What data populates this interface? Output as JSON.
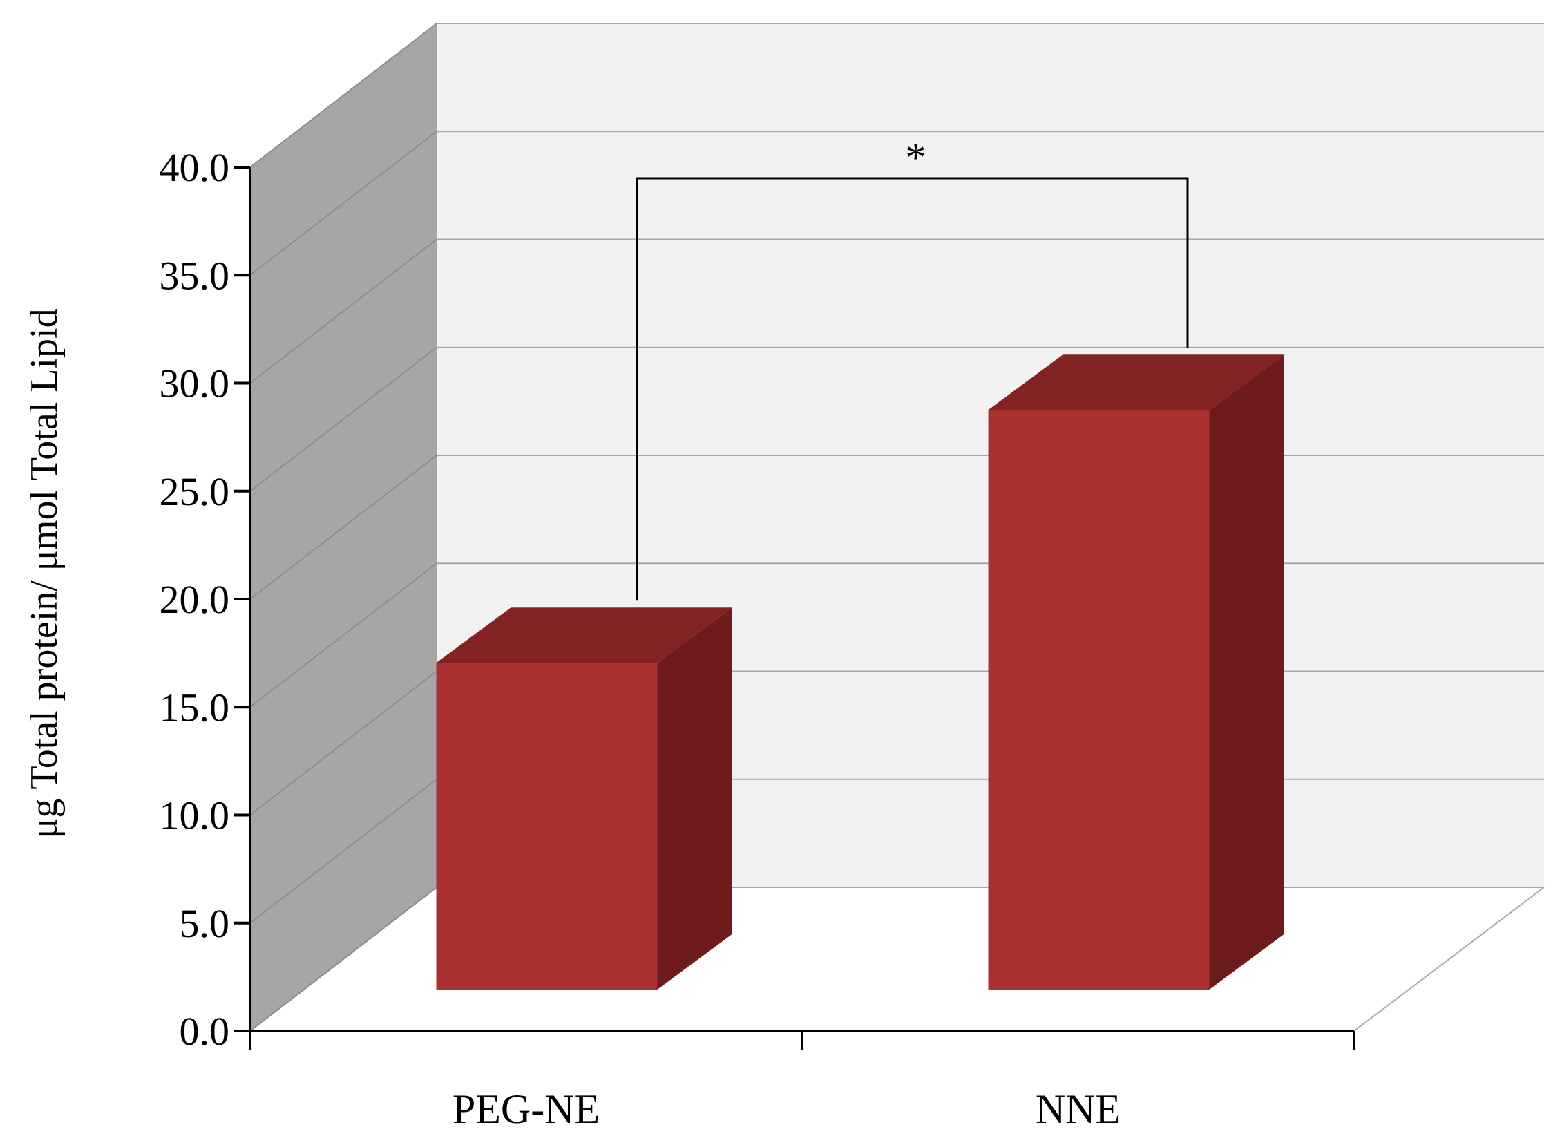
{
  "chart_data": {
    "type": "bar",
    "three_d": true,
    "categories": [
      "PEG-NE",
      "NNE"
    ],
    "values": [
      15.5,
      27.5
    ],
    "title": "",
    "xlabel": "",
    "ylabel": "μg Total protein/ μmol Total Lipid",
    "ylim": [
      0,
      40
    ],
    "ytick_step": 5,
    "ytick_labels": [
      "0.0",
      "5.0",
      "10.0",
      "15.0",
      "20.0",
      "25.0",
      "30.0",
      "35.0",
      "40.0"
    ],
    "grid": true,
    "legend": "none",
    "significance": {
      "between": [
        "PEG-NE",
        "NNE"
      ],
      "label": "*"
    },
    "colors": {
      "bar_front": "#A93131",
      "bar_top": "#822222",
      "bar_side": "#6E1B1E",
      "back_wall": "#F2F2F2",
      "side_wall": "#A6A6A6",
      "gridline": "#A8A8A8"
    }
  }
}
